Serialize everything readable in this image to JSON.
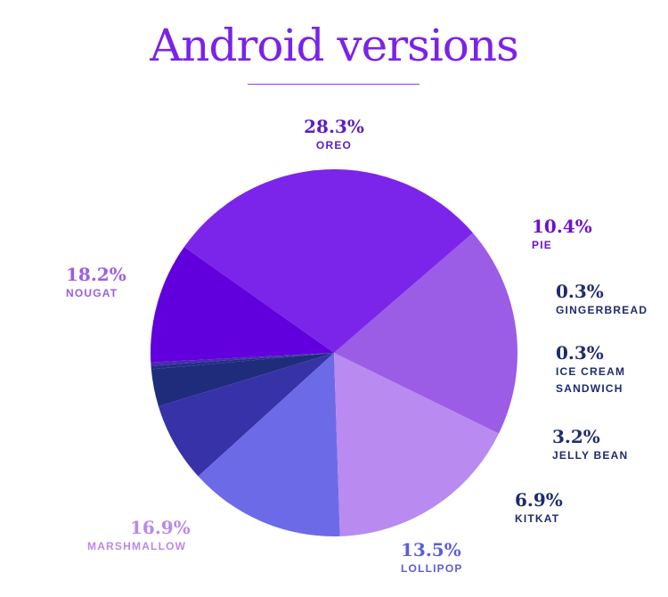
{
  "title": "Android versions",
  "chart_data": {
    "type": "pie",
    "title": "Android versions",
    "slices": [
      {
        "name": "OREO",
        "value": 28.3,
        "label": "28.3%",
        "color": "#7c25ea"
      },
      {
        "name": "PIE",
        "value": 10.4,
        "label": "10.4%",
        "color": "#6100dc"
      },
      {
        "name": "GINGERBREAD",
        "value": 0.3,
        "label": "0.3%",
        "color": "#4a2bb0"
      },
      {
        "name": "ICE CREAM SANDWICH",
        "value": 0.3,
        "label": "0.3%",
        "color": "#232e86"
      },
      {
        "name": "JELLY BEAN",
        "value": 3.2,
        "label": "3.2%",
        "color": "#1f2c7c"
      },
      {
        "name": "KITKAT",
        "value": 6.9,
        "label": "6.9%",
        "color": "#3732a7"
      },
      {
        "name": "LOLLIPOP",
        "value": 13.5,
        "label": "13.5%",
        "color": "#6d6ae8"
      },
      {
        "name": "MARSHMALLOW",
        "value": 16.9,
        "label": "16.9%",
        "color": "#b98af0"
      },
      {
        "name": "NOUGAT",
        "value": 18.2,
        "label": "18.2%",
        "color": "#9b5ce6"
      }
    ],
    "label_colors": {
      "OREO": "#5a1fc0",
      "PIE": "#6a11d6",
      "GINGERBREAD": "#1f2b6e",
      "ICE CREAM SANDWICH": "#1f2b6e",
      "JELLY BEAN": "#1f2b6e",
      "KITKAT": "#1f2b6e",
      "LOLLIPOP": "#5a5ed8",
      "MARSHMALLOW": "#b88ae8",
      "NOUGAT": "#9b5ce6"
    }
  }
}
